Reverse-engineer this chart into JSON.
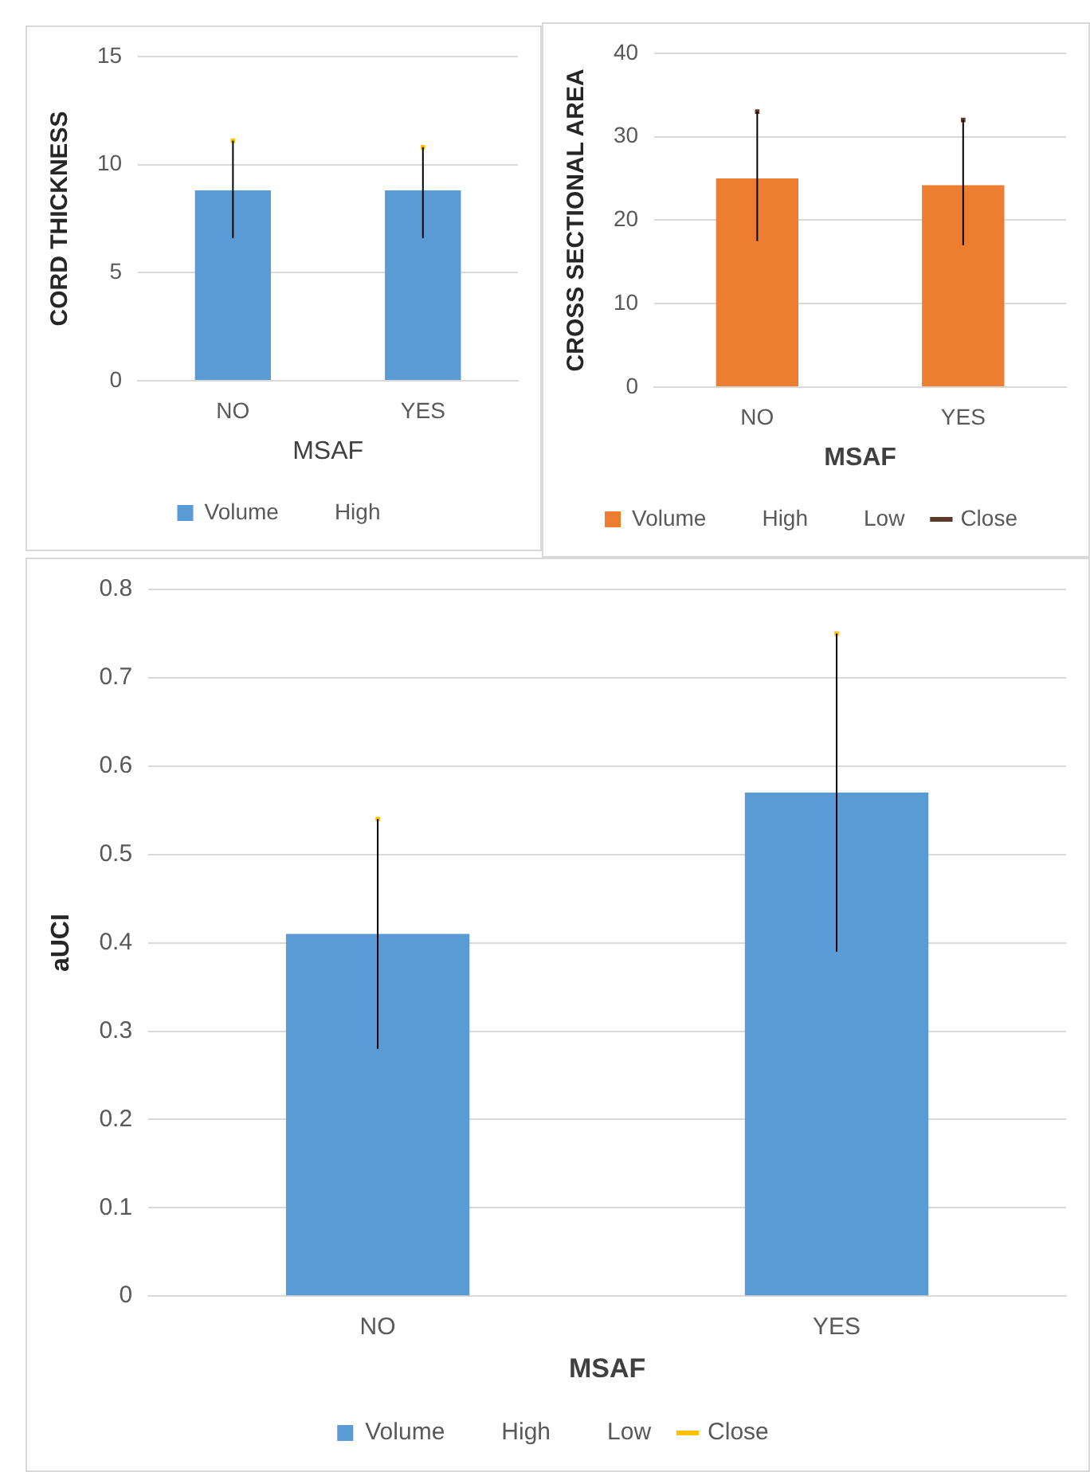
{
  "chart_data": [
    {
      "type": "bar",
      "categories": [
        "NO",
        "YES"
      ],
      "xlabel": "MSAF",
      "ylabel": "CORD THICKNESS",
      "ylim": [
        0,
        15
      ],
      "yticks": [
        0,
        5,
        10,
        15
      ],
      "grid": "y",
      "legend": "bottom",
      "annotations": [
        "High"
      ],
      "series": [
        {
          "name": "Volume",
          "color": "#5b9bd5",
          "values": [
            8.8,
            8.8
          ]
        },
        {
          "type": "scatter",
          "marker": "square",
          "color": "#ffc000",
          "values": [
            11.1,
            10.8
          ],
          "errors": [
            [
              6.6,
              11.1
            ],
            [
              6.6,
              10.8
            ]
          ]
        }
      ]
    },
    {
      "type": "bar",
      "categories": [
        "NO",
        "YES"
      ],
      "xlabel": "MSAF",
      "ylabel": "CROSS SECTIONAL AREA",
      "ylim": [
        0,
        40
      ],
      "yticks": [
        0,
        10,
        20,
        30,
        40
      ],
      "grid": "y",
      "legend": "bottom",
      "annotations": [
        "High",
        "Low"
      ],
      "series": [
        {
          "name": "Volume",
          "color": "#ed7d31",
          "values": [
            25,
            24.2
          ]
        },
        {
          "name": "Close",
          "type": "scatter",
          "marker": "square",
          "color": "#5a3a2a",
          "values": [
            33,
            32
          ],
          "errors": [
            [
              17.5,
              33
            ],
            [
              17,
              32
            ]
          ]
        }
      ]
    },
    {
      "type": "bar",
      "categories": [
        "NO",
        "YES"
      ],
      "xlabel": "MSAF",
      "ylabel": "aUCI",
      "ylim": [
        0,
        0.8
      ],
      "yticks": [
        0,
        0.1,
        0.2,
        0.3,
        0.4,
        0.5,
        0.6,
        0.7,
        0.8
      ],
      "grid": "y",
      "legend": "bottom",
      "annotations": [
        "High",
        "Low"
      ],
      "series": [
        {
          "name": "Volume",
          "color": "#5b9bd5",
          "values": [
            0.41,
            0.57
          ]
        },
        {
          "name": "Close",
          "type": "scatter",
          "marker": "square",
          "color": "#ffc000",
          "values": [
            0.54,
            0.75
          ],
          "errors": [
            [
              0.28,
              0.54
            ],
            [
              0.39,
              0.75
            ]
          ]
        }
      ]
    }
  ]
}
